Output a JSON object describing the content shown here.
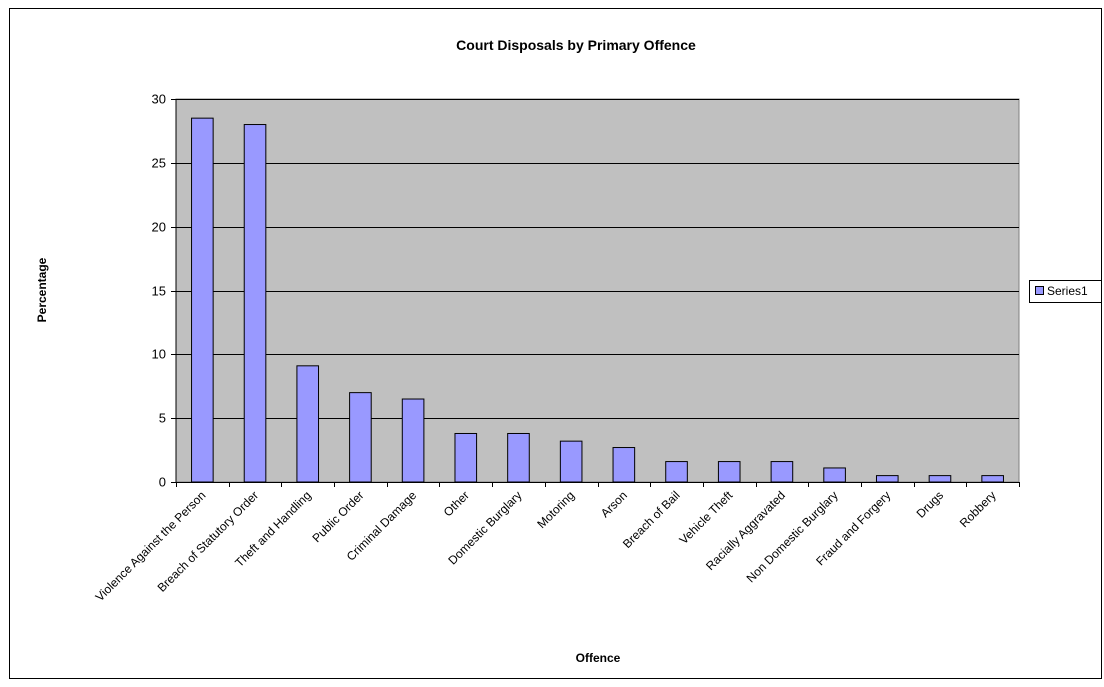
{
  "chart_data": {
    "type": "bar",
    "title": "Court Disposals by Primary Offence",
    "xlabel": "Offence",
    "ylabel": "Percentage",
    "ylim": [
      0,
      30
    ],
    "yticks": [
      0,
      5,
      10,
      15,
      20,
      25,
      30
    ],
    "grid": true,
    "legend_position": "right",
    "categories": [
      "Violence Against the Person",
      "Breach of Statutory Order",
      "Theft and Handling",
      "Public Order",
      "Criminal Damage",
      "Other",
      "Domestic Burglary",
      "Motoring",
      "Arson",
      "Breach of Bail",
      "Vehicle Theft",
      "Racially Aggravated",
      "Non Domestic Burglary",
      "Fraud and Forgery",
      "Drugs",
      "Robbery"
    ],
    "series": [
      {
        "name": "Series1",
        "color": "#9999ff",
        "values": [
          28.5,
          28.0,
          9.1,
          7.0,
          6.5,
          3.8,
          3.8,
          3.2,
          2.7,
          1.6,
          1.6,
          1.6,
          1.1,
          0.5,
          0.5,
          0.5
        ]
      }
    ],
    "plot_background": "#c0c0c0"
  }
}
